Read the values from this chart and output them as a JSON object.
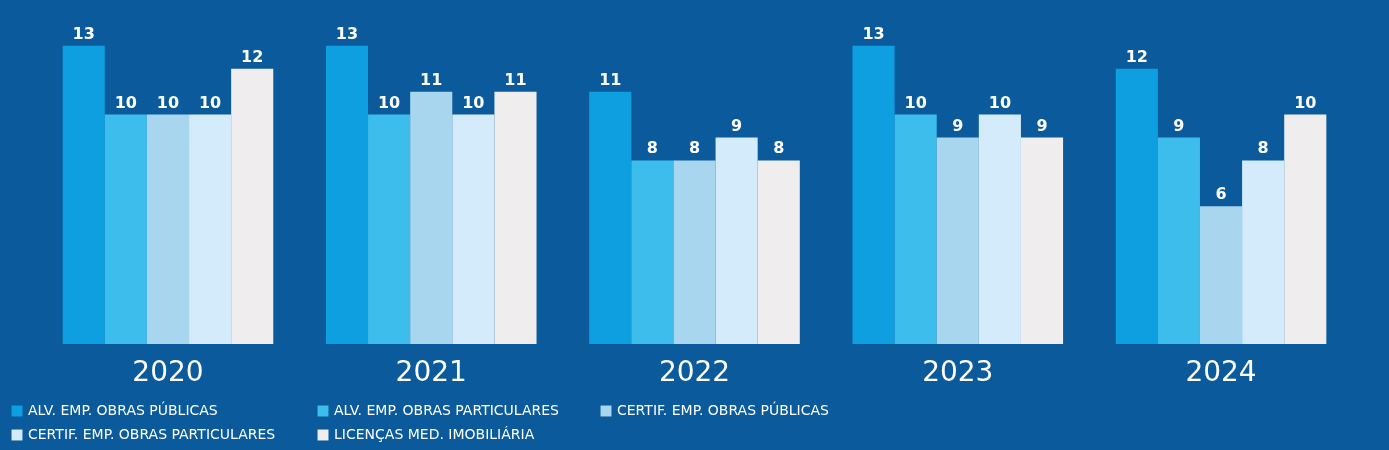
{
  "chart_data": {
    "type": "bar",
    "categories": [
      "2020",
      "2021",
      "2022",
      "2023",
      "2024"
    ],
    "series": [
      {
        "name": "ALV. EMP. OBRAS PÚBLICAS",
        "color": "#0e9fe0",
        "values": [
          13,
          13,
          11,
          13,
          12
        ]
      },
      {
        "name": "ALV. EMP. OBRAS PARTICULARES",
        "color": "#3dbdeb",
        "values": [
          10,
          10,
          8,
          10,
          9
        ]
      },
      {
        "name": "CERTIF. EMP. OBRAS PÚBLICAS",
        "color": "#a8d6ee",
        "values": [
          10,
          11,
          8,
          9,
          6
        ]
      },
      {
        "name": "CERTIF. EMP. OBRAS PARTICULARES",
        "color": "#d3ebfa",
        "values": [
          10,
          10,
          9,
          10,
          8
        ]
      },
      {
        "name": "LICENÇAS MED. IMOBILIÁRIA",
        "color": "#efeded",
        "values": [
          12,
          11,
          8,
          9,
          10
        ]
      }
    ],
    "data_labels": true,
    "legend": "bottom",
    "grid": false
  }
}
